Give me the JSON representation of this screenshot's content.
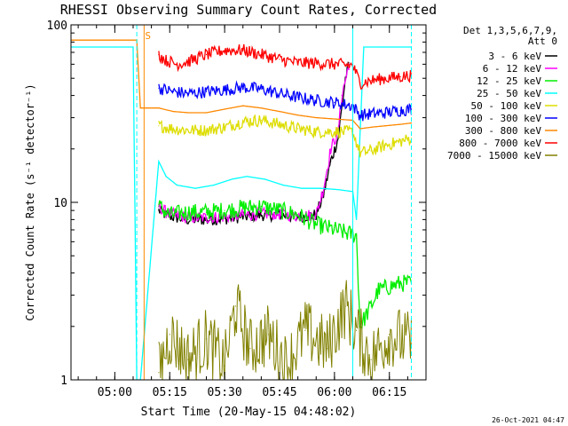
{
  "chart_data": {
    "type": "line",
    "title": "RHESSI Observing Summary Count Rates, Corrected",
    "xlabel": "Start Time (20-May-15 04:48:02)",
    "ylabel": "Corrected Count Rate (s⁻¹ detector⁻¹)",
    "x_unit": "minutes",
    "xlim": [
      "04:48:02",
      "06:25:00"
    ],
    "x_ticks": [
      {
        "t": "05:00",
        "label": "05:00"
      },
      {
        "t": "05:15",
        "label": "05:15"
      },
      {
        "t": "05:30",
        "label": "05:30"
      },
      {
        "t": "05:45",
        "label": "05:45"
      },
      {
        "t": "06:00",
        "label": "06:00"
      },
      {
        "t": "06:15",
        "label": "06:15"
      }
    ],
    "ylim": [
      1,
      100
    ],
    "y_scale": "log",
    "y_ticks": [
      {
        "v": 1,
        "label": "1"
      },
      {
        "v": 10,
        "label": "10"
      },
      {
        "v": 100,
        "label": "100"
      }
    ],
    "legend_header": [
      "Det 1,3,5,6,7,9,",
      "Att 0"
    ],
    "legend_position": "top-right outside",
    "grid": false,
    "series": [
      {
        "name": "3 - 6 keV",
        "color": "#000000",
        "points": [
          [
            "05:12",
            9.0
          ],
          [
            "05:14",
            8.5
          ],
          [
            "05:17",
            8.2
          ],
          [
            "05:20",
            8.0
          ],
          [
            "05:25",
            8.0
          ],
          [
            "05:30",
            8.1
          ],
          [
            "05:35",
            8.3
          ],
          [
            "05:40",
            8.5
          ],
          [
            "05:45",
            8.5
          ],
          [
            "05:50",
            8.3
          ],
          [
            "05:55",
            8.5
          ],
          [
            "05:57",
            11
          ],
          [
            "05:59",
            17
          ],
          [
            "06:01",
            23
          ],
          [
            "06:03",
            50
          ],
          [
            "06:04",
            60
          ]
        ]
      },
      {
        "name": "6 - 12 keV",
        "color": "#ff00ff",
        "points": [
          [
            "05:12",
            9.5
          ],
          [
            "05:14",
            8.8
          ],
          [
            "05:17",
            8.4
          ],
          [
            "05:20",
            8.2
          ],
          [
            "05:25",
            8.2
          ],
          [
            "05:30",
            8.3
          ],
          [
            "05:35",
            8.5
          ],
          [
            "05:40",
            8.6
          ],
          [
            "05:45",
            8.6
          ],
          [
            "05:50",
            8.4
          ],
          [
            "05:55",
            8.5
          ],
          [
            "05:57",
            12
          ],
          [
            "05:59",
            20
          ],
          [
            "06:01",
            25
          ],
          [
            "06:02",
            40
          ],
          [
            "06:04",
            60
          ]
        ]
      },
      {
        "name": "12 - 25 keV",
        "color": "#00ee00",
        "points": [
          [
            "05:12",
            9.5
          ],
          [
            "05:15",
            8.5
          ],
          [
            "05:20",
            8.8
          ],
          [
            "05:25",
            8.8
          ],
          [
            "05:30",
            9.0
          ],
          [
            "05:35",
            9.3
          ],
          [
            "05:40",
            9.5
          ],
          [
            "05:45",
            9.0
          ],
          [
            "05:50",
            8.5
          ],
          [
            "05:55",
            7.5
          ],
          [
            "06:00",
            7.0
          ],
          [
            "06:06",
            6.5
          ],
          [
            "06:07",
            2.0
          ],
          [
            "06:10",
            2.6
          ],
          [
            "06:12",
            3.2
          ],
          [
            "06:18",
            3.5
          ],
          [
            "06:21",
            3.5
          ]
        ]
      },
      {
        "name": "25 - 50 keV",
        "color": "#00ffff",
        "points": [
          [
            "04:48",
            75
          ],
          [
            "05:00",
            75
          ],
          [
            "05:05",
            75
          ],
          [
            "05:06",
            1
          ],
          [
            "05:07",
            1
          ],
          [
            "05:12",
            17
          ],
          [
            "05:14",
            14
          ],
          [
            "05:17",
            12.5
          ],
          [
            "05:22",
            12
          ],
          [
            "05:27",
            12.5
          ],
          [
            "05:32",
            13.5
          ],
          [
            "05:36",
            14
          ],
          [
            "05:41",
            13.5
          ],
          [
            "05:46",
            12.5
          ],
          [
            "05:51",
            12
          ],
          [
            "05:56",
            12
          ],
          [
            "06:01",
            11.8
          ],
          [
            "06:05",
            11.5
          ],
          [
            "06:06",
            8
          ],
          [
            "06:08",
            75
          ],
          [
            "06:12",
            75
          ],
          [
            "06:21",
            75
          ]
        ]
      },
      {
        "name": "50 - 100 keV",
        "color": "#dddd00",
        "points": [
          [
            "05:12",
            27
          ],
          [
            "05:16",
            26
          ],
          [
            "05:20",
            25.5
          ],
          [
            "05:25",
            25.5
          ],
          [
            "05:30",
            26.5
          ],
          [
            "05:35",
            28.5
          ],
          [
            "05:40",
            29
          ],
          [
            "05:45",
            27.5
          ],
          [
            "05:50",
            26
          ],
          [
            "05:55",
            25
          ],
          [
            "06:00",
            25
          ],
          [
            "06:05",
            25
          ],
          [
            "06:07",
            19
          ],
          [
            "06:10",
            19.5
          ],
          [
            "06:14",
            21
          ],
          [
            "06:18",
            22
          ],
          [
            "06:21",
            23
          ]
        ]
      },
      {
        "name": "100 - 300 keV",
        "color": "#0000ff",
        "points": [
          [
            "05:12",
            44
          ],
          [
            "05:16",
            42
          ],
          [
            "05:20",
            41
          ],
          [
            "05:25",
            42
          ],
          [
            "05:30",
            43
          ],
          [
            "05:35",
            44.5
          ],
          [
            "05:40",
            43.5
          ],
          [
            "05:45",
            41
          ],
          [
            "05:50",
            39
          ],
          [
            "05:55",
            37.5
          ],
          [
            "06:00",
            36.5
          ],
          [
            "06:05",
            35
          ],
          [
            "06:07",
            31
          ],
          [
            "06:10",
            31.5
          ],
          [
            "06:14",
            32
          ],
          [
            "06:18",
            33
          ],
          [
            "06:21",
            33.5
          ]
        ]
      },
      {
        "name": "300 - 800 keV",
        "color": "#ff8800",
        "points": [
          [
            "04:48",
            82
          ],
          [
            "05:05",
            82
          ],
          [
            "05:06",
            82
          ],
          [
            "05:07",
            34
          ],
          [
            "05:12",
            34
          ],
          [
            "05:16",
            32.5
          ],
          [
            "05:20",
            32
          ],
          [
            "05:25",
            32
          ],
          [
            "05:30",
            33.5
          ],
          [
            "05:35",
            35
          ],
          [
            "05:40",
            34
          ],
          [
            "05:45",
            32.5
          ],
          [
            "05:50",
            31
          ],
          [
            "05:55",
            30
          ],
          [
            "06:00",
            29.5
          ],
          [
            "06:05",
            29
          ],
          [
            "06:07",
            26
          ],
          [
            "06:10",
            26.5
          ],
          [
            "06:14",
            27
          ],
          [
            "06:18",
            27.5
          ],
          [
            "06:21",
            28
          ]
        ]
      },
      {
        "name": "800 - 7000 keV",
        "color": "#ff0000",
        "points": [
          [
            "05:12",
            68
          ],
          [
            "05:14",
            63
          ],
          [
            "05:17",
            60
          ],
          [
            "05:20",
            62
          ],
          [
            "05:25",
            68
          ],
          [
            "05:30",
            72
          ],
          [
            "05:35",
            72
          ],
          [
            "05:40",
            68
          ],
          [
            "05:45",
            64
          ],
          [
            "05:50",
            61
          ],
          [
            "05:55",
            61
          ],
          [
            "06:00",
            60
          ],
          [
            "06:05",
            59
          ],
          [
            "06:07",
            47
          ],
          [
            "06:10",
            48.5
          ],
          [
            "06:14",
            50
          ],
          [
            "06:18",
            51
          ],
          [
            "06:21",
            52
          ]
        ]
      },
      {
        "name": "7000 - 15000 keV",
        "color": "#808000",
        "points": [
          [
            "05:12",
            1.1
          ],
          [
            "05:15",
            1.8
          ],
          [
            "05:20",
            1.3
          ],
          [
            "05:25",
            1.7
          ],
          [
            "05:30",
            1.2
          ],
          [
            "05:33",
            2.6
          ],
          [
            "05:37",
            1.5
          ],
          [
            "05:42",
            1.8
          ],
          [
            "05:47",
            1.2
          ],
          [
            "05:52",
            1.9
          ],
          [
            "05:58",
            1.5
          ],
          [
            "06:03",
            2.6
          ],
          [
            "06:06",
            1.9
          ],
          [
            "06:10",
            1.3
          ],
          [
            "06:15",
            1.8
          ],
          [
            "06:21",
            1.6
          ]
        ]
      }
    ],
    "annotations": {
      "s_marker": {
        "t": "05:08",
        "label": "S"
      },
      "dashed_markers": [
        {
          "t": "05:06",
          "color": "#00ffff"
        },
        {
          "t": "06:21",
          "color": "#00ffff"
        }
      ],
      "solid_markers": [
        {
          "t": "05:08",
          "color": "#ff8800"
        },
        {
          "t": "06:05",
          "color": "#00ffff"
        }
      ]
    },
    "footer_timestamp": "26-Oct-2021 04:47"
  }
}
